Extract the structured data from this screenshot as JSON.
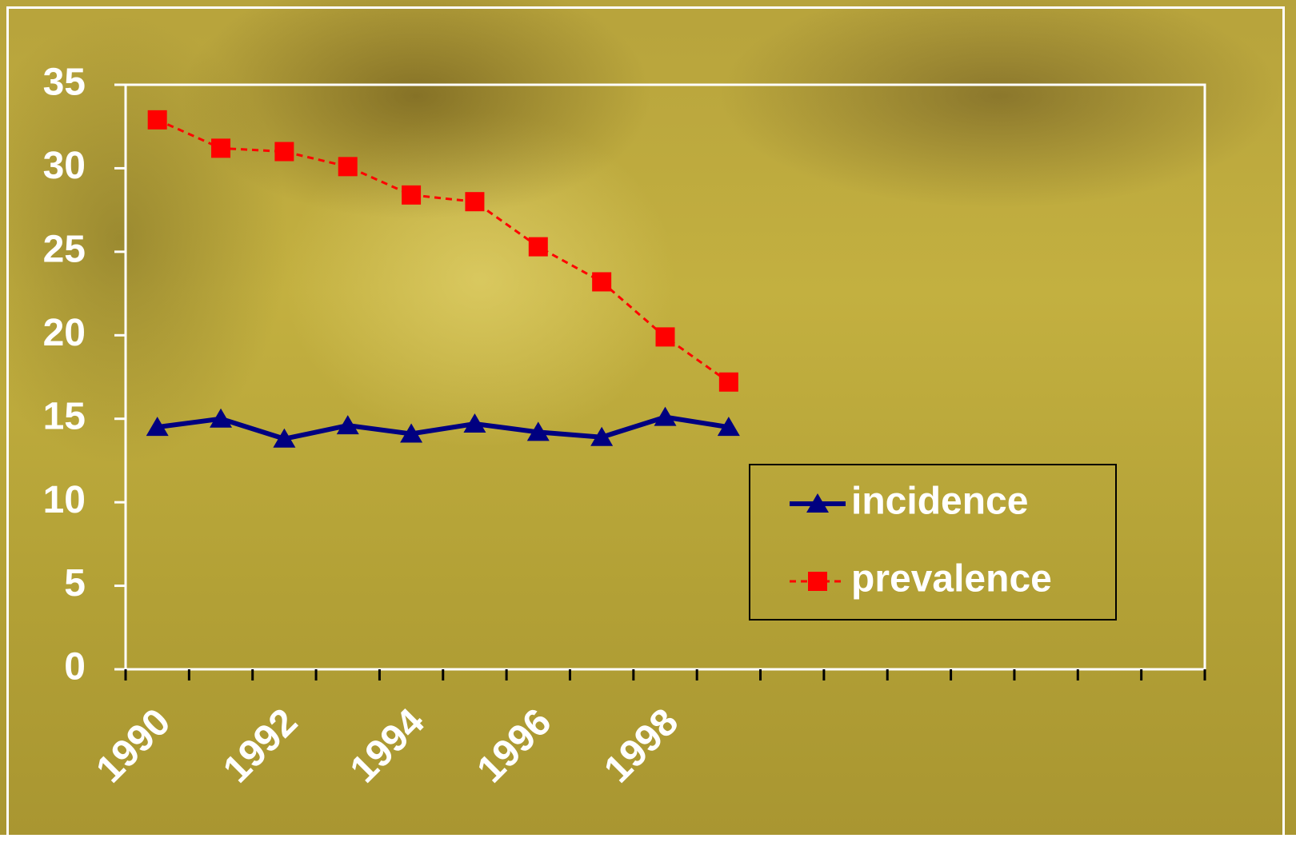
{
  "chart_data": {
    "type": "line",
    "categories": [
      "1990",
      null,
      "1992",
      null,
      "1994",
      null,
      "1996",
      null,
      "1998",
      null,
      null,
      null,
      null,
      null,
      null,
      null,
      null
    ],
    "series": [
      {
        "name": "incidence",
        "color": "#000080",
        "marker": "triangle",
        "dash": false,
        "values": [
          14.5,
          15.0,
          13.8,
          14.6,
          14.1,
          14.7,
          14.2,
          13.9,
          15.1,
          14.5,
          null,
          null,
          null,
          null,
          null,
          null,
          null
        ]
      },
      {
        "name": "prevalence",
        "color": "#ff0000",
        "marker": "square",
        "dash": true,
        "values": [
          32.9,
          31.2,
          31.0,
          30.1,
          28.4,
          28.0,
          25.3,
          23.2,
          19.9,
          17.2,
          null,
          null,
          null,
          null,
          null,
          null,
          null
        ]
      }
    ],
    "ylim": [
      0,
      35
    ],
    "yticks": [
      0,
      5,
      10,
      15,
      20,
      25,
      30,
      35
    ],
    "grid": false,
    "legend": "right"
  }
}
